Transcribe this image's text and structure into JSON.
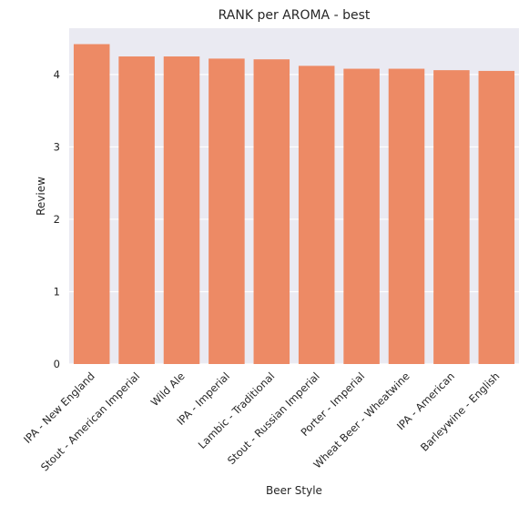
{
  "chart_data": {
    "type": "bar",
    "title": "RANK per AROMA - best",
    "xlabel": "Beer Style",
    "ylabel": "Review",
    "categories": [
      "IPA - New England",
      "Stout - American Imperial",
      "Wild Ale",
      "IPA - Imperial",
      "Lambic - Traditional",
      "Stout - Russian Imperial",
      "Porter - Imperial",
      "Wheat Beer - Wheatwine",
      "IPA - American",
      "Barleywine - English"
    ],
    "values": [
      4.42,
      4.25,
      4.25,
      4.22,
      4.21,
      4.12,
      4.08,
      4.08,
      4.06,
      4.05
    ],
    "ylim": [
      0,
      4.64
    ],
    "yticks": [
      0,
      1,
      2,
      3,
      4
    ],
    "grid": true,
    "colors": {
      "bar": "#ed8a65",
      "plot_background": "#eaeaf2",
      "grid": "#ffffff"
    }
  }
}
